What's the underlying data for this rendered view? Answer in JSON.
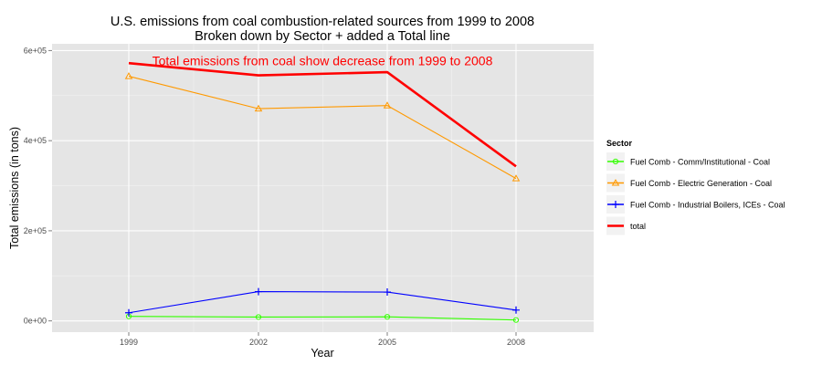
{
  "chart_data": {
    "type": "line",
    "title": "U.S. emissions from coal combustion-related sources from 1999 to 2008",
    "subtitle": "Broken down by Sector + added a Total line",
    "xlabel": "Year",
    "ylabel": "Total emissions (in tons)",
    "x": [
      "1999",
      "2002",
      "2005",
      "2008"
    ],
    "ylim": [
      -25000,
      615000
    ],
    "yticks": [
      {
        "value": 0,
        "label": "0e+00"
      },
      {
        "value": 200000,
        "label": "2e+05"
      },
      {
        "value": 400000,
        "label": "4e+05"
      },
      {
        "value": 600000,
        "label": "6e+05"
      }
    ],
    "grid": true,
    "legend": {
      "title": "Sector",
      "placement": "right"
    },
    "series": [
      {
        "name": "Fuel Comb - Comm/Institutional - Coal",
        "color": "#33ff00",
        "marker": "circle",
        "values": [
          10000,
          8500,
          9000,
          2000
        ]
      },
      {
        "name": "Fuel Comb - Electric Generation - Coal",
        "color": "#ff9900",
        "marker": "triangle",
        "values": [
          543000,
          471000,
          478000,
          316000
        ]
      },
      {
        "name": "Fuel Comb - Industrial Boilers, ICEs - Coal",
        "color": "#0000ff",
        "marker": "plus",
        "values": [
          18000,
          65000,
          64000,
          24000
        ]
      },
      {
        "name": "total",
        "color": "#ff0000",
        "marker": "none",
        "values": [
          572000,
          545000,
          552000,
          343000
        ]
      }
    ],
    "annotation": {
      "text": "Total emissions from coal show decrease from 1999 to 2008",
      "color": "#ff0000",
      "x": "2002",
      "y": 578000
    }
  },
  "colors": {
    "panel_background": "#e5e5e5",
    "grid_major": "#ffffff",
    "grid_minor": "#f2f2f2"
  }
}
